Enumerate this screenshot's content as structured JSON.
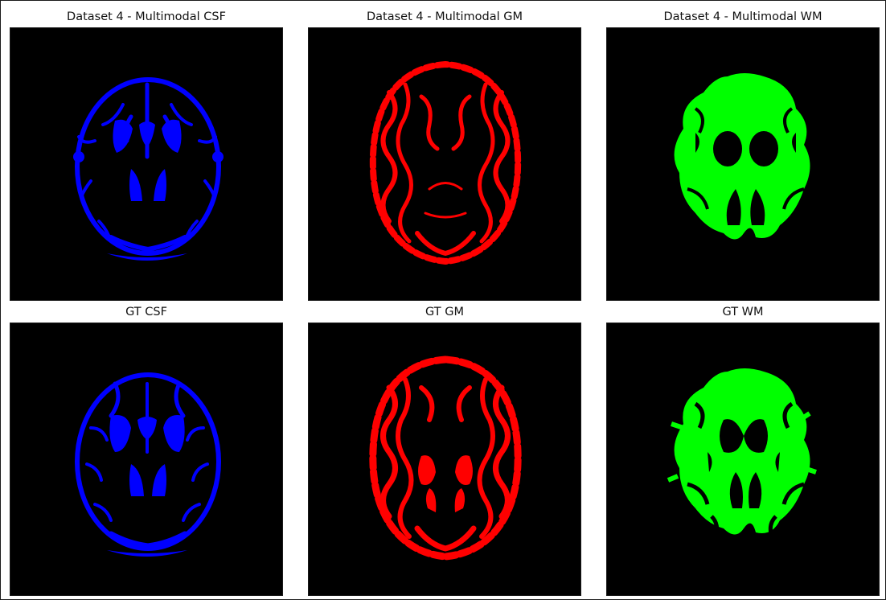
{
  "figure": {
    "panels": [
      {
        "title": "Dataset 4 - Multimodal CSF",
        "tissue": "csf",
        "color": "#0000ff",
        "source": "prediction"
      },
      {
        "title": "Dataset 4 - Multimodal GM",
        "tissue": "gm",
        "color": "#ff0000",
        "source": "prediction"
      },
      {
        "title": "Dataset 4 - Multimodal WM",
        "tissue": "wm",
        "color": "#00ff00",
        "source": "prediction"
      },
      {
        "title": "GT CSF",
        "tissue": "csf",
        "color": "#0000ff",
        "source": "ground-truth"
      },
      {
        "title": "GT GM",
        "tissue": "gm",
        "color": "#ff0000",
        "source": "ground-truth"
      },
      {
        "title": "GT WM",
        "tissue": "wm",
        "color": "#00ff00",
        "source": "ground-truth"
      }
    ]
  }
}
